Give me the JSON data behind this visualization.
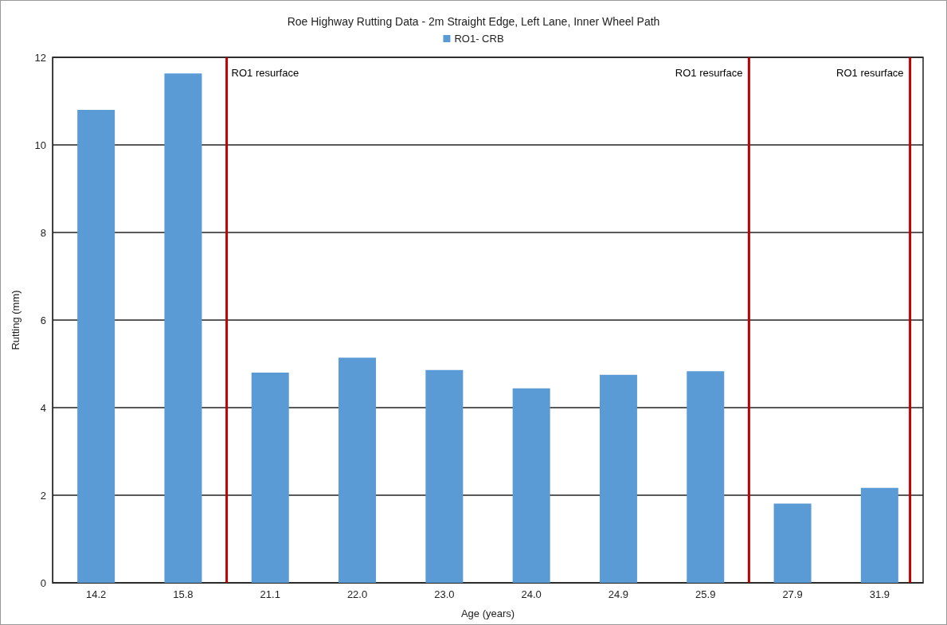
{
  "chart_data": {
    "type": "bar",
    "title": "Roe Highway Rutting Data - 2m Straight Edge, Left Lane, Inner Wheel Path",
    "xlabel": "Age (years)",
    "ylabel": "Rutting (mm)",
    "categories": [
      "14.2",
      "15.8",
      "21.1",
      "22.0",
      "23.0",
      "24.0",
      "24.9",
      "25.9",
      "27.9",
      "31.9"
    ],
    "series": [
      {
        "name": "RO1- CRB",
        "color": "#5b9bd5",
        "values": [
          10.8,
          11.63,
          4.8,
          5.14,
          4.86,
          4.44,
          4.75,
          4.83,
          1.81,
          2.17
        ]
      }
    ],
    "ylim": [
      0,
      12
    ],
    "yticks": [
      0,
      2,
      4,
      6,
      8,
      10,
      12
    ],
    "grid": "y",
    "legend": "top",
    "annotations": [
      "RO1 resurface",
      "RO1 resurface",
      "RO1 resurface"
    ]
  }
}
